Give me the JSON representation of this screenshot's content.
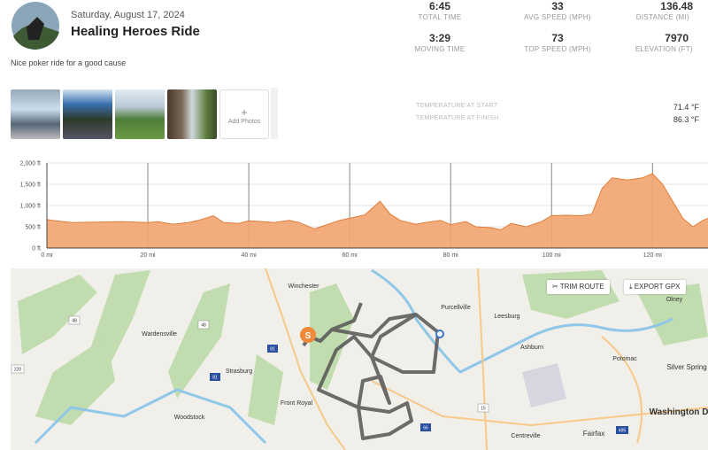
{
  "header": {
    "date": "Saturday, August 17, 2024",
    "title": "Healing Heroes Ride",
    "description": "Nice poker ride for a good cause"
  },
  "stats": [
    {
      "value": "6:45",
      "label": "TOTAL TIME"
    },
    {
      "value": "33",
      "label": "AVG SPEED (MPH)"
    },
    {
      "value": "136.48",
      "label": "DISTANCE (MI)"
    },
    {
      "value": "3:29",
      "label": "MOVING TIME"
    },
    {
      "value": "73",
      "label": "TOP SPEED (MPH)"
    },
    {
      "value": "7970",
      "label": "ELEVATION (FT)"
    }
  ],
  "photos": {
    "add_icon": "+",
    "add_label": "Add Photos"
  },
  "temperature": [
    {
      "label": "TEMPERATURE AT START",
      "value": "71.4 °F"
    },
    {
      "label": "TEMPERATURE AT FINISH",
      "value": "86.3 °F"
    }
  ],
  "chart_data": {
    "type": "area",
    "color": "#f2a46e",
    "line_color": "#e07c3a",
    "grid": true,
    "x": [
      0,
      1,
      5,
      10,
      15,
      20,
      22,
      25,
      28,
      30,
      33,
      35,
      38,
      40,
      43,
      45,
      48,
      50,
      53,
      55,
      58,
      60,
      63,
      66,
      68,
      70,
      73,
      75,
      78,
      80,
      83,
      85,
      88,
      90,
      92,
      95,
      98,
      100,
      103,
      106,
      108,
      110,
      112,
      115,
      118,
      120,
      122,
      124,
      126,
      128,
      130,
      131
    ],
    "values": [
      670,
      650,
      600,
      610,
      620,
      600,
      620,
      560,
      600,
      650,
      760,
      600,
      580,
      640,
      620,
      600,
      650,
      600,
      450,
      530,
      650,
      700,
      780,
      1100,
      800,
      650,
      560,
      600,
      650,
      550,
      620,
      500,
      480,
      430,
      580,
      500,
      620,
      760,
      770,
      760,
      800,
      1400,
      1650,
      1600,
      1650,
      1750,
      1500,
      1100,
      700,
      500,
      650,
      700
    ],
    "xlim": [
      0,
      131
    ],
    "ylim": [
      0,
      2000
    ],
    "xticks": [
      {
        "value": 0,
        "label": "0 mi"
      },
      {
        "value": 20,
        "label": "20 mi"
      },
      {
        "value": 40,
        "label": "40 mi"
      },
      {
        "value": 60,
        "label": "60 mi"
      },
      {
        "value": 80,
        "label": "80 mi"
      },
      {
        "value": 100,
        "label": "100 mi"
      },
      {
        "value": 120,
        "label": "120 mi"
      }
    ],
    "yticks": [
      {
        "value": 0,
        "label": "0 ft"
      },
      {
        "value": 500,
        "label": "500 ft"
      },
      {
        "value": 1000,
        "label": "1,000 ft"
      },
      {
        "value": 1500,
        "label": "1,500 ft"
      },
      {
        "value": 2000,
        "label": "2,000 ft"
      }
    ]
  },
  "map": {
    "buttons": [
      "TRIM ROUTE",
      "EXPORT GPX"
    ],
    "start_marker": "S",
    "labels": [
      "Winchester",
      "Purcellville",
      "Leesburg",
      "Wardensville",
      "Strasburg",
      "Front Royal",
      "Ashburn",
      "Potomac",
      "Silver Spring",
      "Olney",
      "Washington D",
      "Woodstock",
      "Fairfax",
      "Centreville"
    ],
    "shields": [
      "48",
      "48",
      "81",
      "81",
      "220",
      "15",
      "66",
      "495"
    ]
  }
}
